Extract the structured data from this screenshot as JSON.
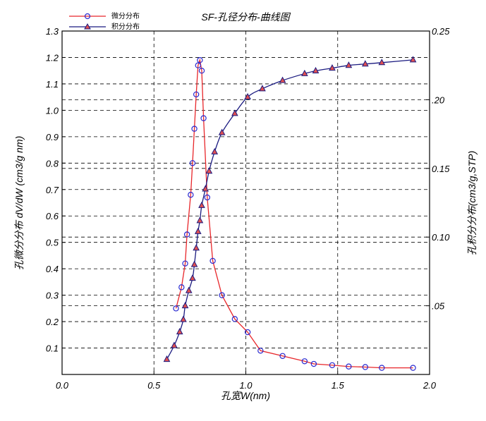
{
  "chart_data": {
    "type": "line",
    "title": "SF-孔径分布-曲线图",
    "xlabel": "孔宽W(nm)",
    "ylabel_left": "孔微分分布 dV/dW (cm3/g nm)",
    "ylabel_right": "孔积分分布(cm3/g,STP)",
    "xlim": [
      0.0,
      2.0
    ],
    "ylim_left": [
      0.0,
      1.3
    ],
    "ylim_right": [
      0.0,
      0.25
    ],
    "x_ticks": [
      "0.0",
      "0.5",
      "1.0",
      "1.5",
      "2.0"
    ],
    "y_left_ticks": [
      "0.1",
      "0.2",
      "0.3",
      "0.4",
      "0.5",
      "0.6",
      "0.7",
      "0.8",
      "0.9",
      "1.0",
      "1.1",
      "1.2",
      "1.3"
    ],
    "y_right_ticks": [
      ".05",
      "0.10",
      "0.15",
      ".20",
      "0.25"
    ],
    "grid": true,
    "legend_position": "top-left",
    "series": [
      {
        "name": "微分分布",
        "axis": "left",
        "marker": "circle",
        "line_color": "#e8262a",
        "marker_color": "#2a2ad0",
        "points": [
          [
            0.62,
            0.25
          ],
          [
            0.65,
            0.33
          ],
          [
            0.67,
            0.42
          ],
          [
            0.68,
            0.53
          ],
          [
            0.7,
            0.68
          ],
          [
            0.71,
            0.8
          ],
          [
            0.72,
            0.93
          ],
          [
            0.73,
            1.06
          ],
          [
            0.74,
            1.17
          ],
          [
            0.75,
            1.19
          ],
          [
            0.76,
            1.15
          ],
          [
            0.77,
            0.97
          ],
          [
            0.79,
            0.67
          ],
          [
            0.82,
            0.43
          ],
          [
            0.87,
            0.3
          ],
          [
            0.94,
            0.21
          ],
          [
            1.01,
            0.16
          ],
          [
            1.08,
            0.09
          ],
          [
            1.2,
            0.07
          ],
          [
            1.32,
            0.05
          ],
          [
            1.37,
            0.04
          ],
          [
            1.47,
            0.035
          ],
          [
            1.56,
            0.03
          ],
          [
            1.65,
            0.028
          ],
          [
            1.74,
            0.025
          ],
          [
            1.91,
            0.025
          ]
        ]
      },
      {
        "name": "积分分布",
        "axis": "right",
        "marker": "triangle",
        "line_color": "#1a1a80",
        "marker_color": "#1a1a80",
        "marker_fill": "#e05050",
        "points": [
          [
            0.57,
            0.011
          ],
          [
            0.61,
            0.021
          ],
          [
            0.64,
            0.031
          ],
          [
            0.66,
            0.04
          ],
          [
            0.67,
            0.05
          ],
          [
            0.69,
            0.061
          ],
          [
            0.71,
            0.07
          ],
          [
            0.72,
            0.08
          ],
          [
            0.73,
            0.092
          ],
          [
            0.74,
            0.104
          ],
          [
            0.75,
            0.112
          ],
          [
            0.76,
            0.123
          ],
          [
            0.78,
            0.135
          ],
          [
            0.8,
            0.148
          ],
          [
            0.83,
            0.162
          ],
          [
            0.87,
            0.176
          ],
          [
            0.94,
            0.19
          ],
          [
            1.01,
            0.202
          ],
          [
            1.09,
            0.208
          ],
          [
            1.2,
            0.214
          ],
          [
            1.32,
            0.219
          ],
          [
            1.38,
            0.221
          ],
          [
            1.47,
            0.223
          ],
          [
            1.56,
            0.225
          ],
          [
            1.65,
            0.226
          ],
          [
            1.74,
            0.227
          ],
          [
            1.91,
            0.229
          ]
        ]
      }
    ]
  }
}
